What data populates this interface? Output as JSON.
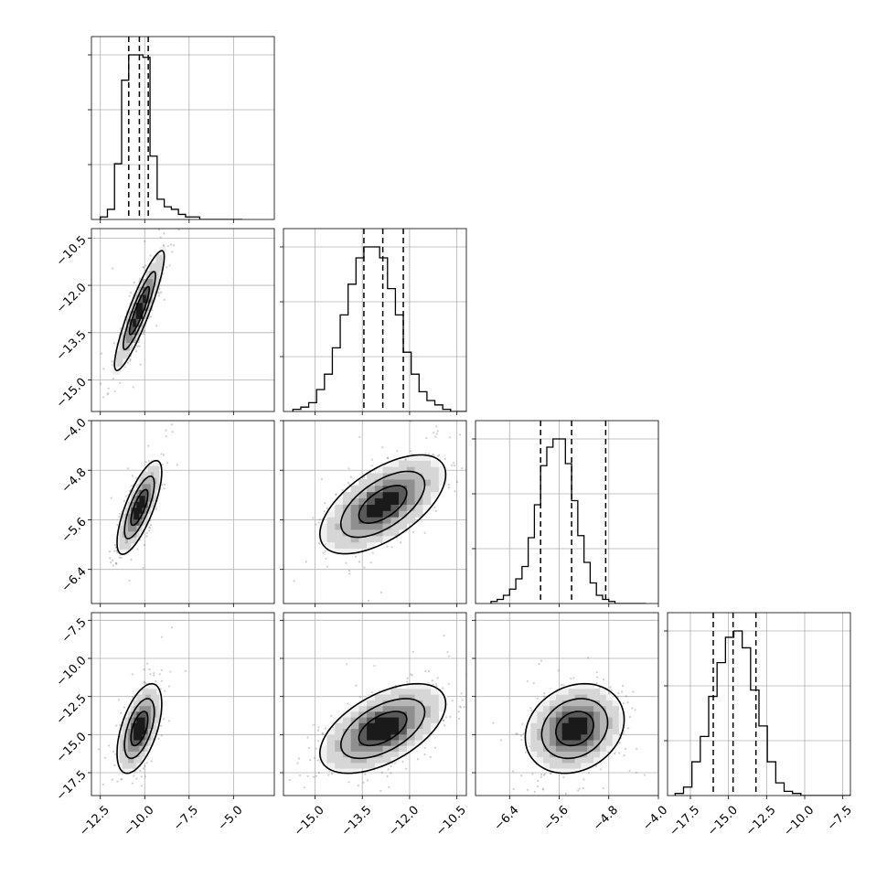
{
  "chart_data": {
    "type": "corner",
    "parameters": [
      {
        "index": 0,
        "lim": [
          -13.0,
          -2.7
        ],
        "ticks": [
          -12.5,
          -10.0,
          -7.5,
          -5.0
        ],
        "tick_labels": [
          "−12.5",
          "−10.0",
          "−7.5",
          "−5.0"
        ]
      },
      {
        "index": 1,
        "lim": [
          -16.0,
          -10.2
        ],
        "ticks": [
          -15.0,
          -13.5,
          -12.0,
          -10.5
        ],
        "tick_labels": [
          "−15.0",
          "−13.5",
          "−12.0",
          "−10.5"
        ]
      },
      {
        "index": 2,
        "lim": [
          -6.95,
          -4.0
        ],
        "ticks": [
          -6.4,
          -5.6,
          -4.8,
          -4.0
        ],
        "tick_labels": [
          "−6.4",
          "−5.6",
          "−4.8",
          "−4.0"
        ]
      },
      {
        "index": 3,
        "lim": [
          -19.0,
          -7.0
        ],
        "ticks": [
          -17.5,
          -15.0,
          -12.5,
          -10.0,
          -7.5
        ],
        "tick_labels": [
          "−17.5",
          "−15.0",
          "−12.5",
          "−10.0",
          "−7.5"
        ]
      }
    ],
    "y_tick_labels": {
      "row1": [
        "−10.5",
        "−12.0",
        "−13.5",
        "−15.0"
      ],
      "row2": [
        "−4.0",
        "−4.8",
        "−5.6",
        "−6.4"
      ],
      "row3": [
        "−7.5",
        "−10.0",
        "−12.5",
        "−15.0",
        "−17.5"
      ]
    },
    "x_tick_labels_bottom": {
      "col0": [
        "−12.5",
        "−10.0",
        "−7.5",
        "−5.0"
      ],
      "col1": [
        "−15.0",
        "−13.5",
        "−12.0",
        "−10.5"
      ],
      "col2": [
        "−6.4",
        "−5.6",
        "−4.8",
        "−4.0"
      ],
      "col3": [
        "−17.5",
        "−15.0",
        "−12.5",
        "−10.0",
        "−7.5"
      ]
    },
    "marginals": [
      {
        "param": 0,
        "bin_lo": -12.5,
        "bin_width": 0.4,
        "counts": [
          1,
          4,
          22,
          55,
          65,
          65,
          64,
          25,
          8,
          5,
          4,
          2,
          1,
          1,
          0,
          0,
          0,
          0,
          0,
          0
        ],
        "quantiles": [
          -10.9,
          -10.3,
          -9.8
        ]
      },
      {
        "param": 1,
        "bin_lo": -15.7,
        "bin_width": 0.25,
        "counts": [
          1,
          2,
          4,
          10,
          17,
          29,
          44,
          58,
          70,
          75,
          75,
          70,
          56,
          44,
          27,
          17,
          9,
          5,
          3,
          1,
          0,
          0
        ],
        "quantiles": [
          -13.45,
          -12.85,
          -12.2
        ]
      },
      {
        "param": 2,
        "bin_lo": -6.7,
        "bin_width": 0.1,
        "counts": [
          1,
          2,
          4,
          7,
          12,
          18,
          32,
          48,
          67,
          76,
          80,
          80,
          68,
          50,
          33,
          20,
          10,
          4,
          2,
          1,
          0,
          0,
          0,
          0,
          0
        ],
        "quantiles": [
          -5.9,
          -5.4,
          -4.85
        ]
      },
      {
        "param": 3,
        "bin_lo": -18.5,
        "bin_width": 0.55,
        "counts": [
          1,
          4,
          16,
          28,
          47,
          63,
          75,
          78,
          70,
          50,
          33,
          16,
          6,
          2,
          1,
          0,
          0,
          0,
          0,
          0,
          0
        ],
        "quantiles": [
          -16.0,
          -14.7,
          -13.2
        ]
      }
    ],
    "pairs": [
      {
        "x_param": 0,
        "y_param": 1,
        "x_mean": -10.3,
        "x_sd": 0.7,
        "y_mean": -12.8,
        "y_sd": 0.95,
        "corr": 0.9,
        "contour_levels": [
          0.8,
          1.3,
          2.0
        ],
        "points": 520
      },
      {
        "x_param": 0,
        "y_param": 2,
        "x_mean": -10.3,
        "x_sd": 0.6,
        "y_mean": -5.4,
        "y_sd": 0.36,
        "corr": 0.75,
        "contour_levels": [
          0.8,
          1.4,
          2.1
        ],
        "points": 520
      },
      {
        "x_param": 1,
        "y_param": 2,
        "x_mean": -12.85,
        "x_sd": 0.95,
        "y_mean": -5.35,
        "y_sd": 0.38,
        "corr": 0.6,
        "contour_levels": [
          0.8,
          1.4,
          2.1
        ],
        "points": 620
      },
      {
        "x_param": 0,
        "y_param": 3,
        "x_mean": -10.3,
        "x_sd": 0.6,
        "y_mean": -14.6,
        "y_sd": 1.4,
        "corr": 0.55,
        "contour_levels": [
          0.8,
          1.4,
          2.1
        ],
        "points": 520
      },
      {
        "x_param": 1,
        "y_param": 3,
        "x_mean": -12.85,
        "x_sd": 0.95,
        "y_mean": -14.6,
        "y_sd": 1.4,
        "corr": 0.55,
        "contour_levels": [
          0.8,
          1.4,
          2.1
        ],
        "points": 620
      },
      {
        "x_param": 2,
        "y_param": 3,
        "x_mean": -5.35,
        "x_sd": 0.38,
        "y_mean": -14.6,
        "y_sd": 1.4,
        "corr": 0.2,
        "contour_levels": [
          0.8,
          1.4,
          2.1
        ],
        "points": 620
      }
    ]
  }
}
